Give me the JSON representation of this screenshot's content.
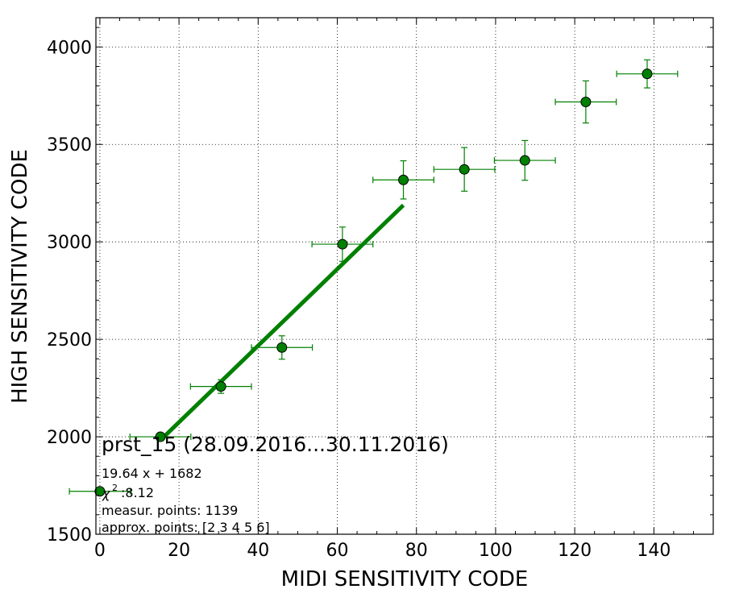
{
  "chart_data": {
    "type": "scatter",
    "xlabel": "MIDI SENSITIVITY CODE",
    "ylabel": "HIGH SENSITIVITY CODE",
    "xlim": [
      -1,
      155
    ],
    "ylim": [
      1500,
      4150
    ],
    "xticks": [
      0,
      20,
      40,
      60,
      80,
      100,
      120,
      140
    ],
    "yticks": [
      1500,
      2000,
      2500,
      3000,
      3500,
      4000
    ],
    "grid": true,
    "colors": {
      "points": "#008000",
      "fit": "#008000",
      "errorbars": "#008000"
    },
    "points": [
      {
        "x": 0,
        "y": 1720,
        "xerr": 7.7,
        "yerr": 0
      },
      {
        "x": 15.3,
        "y": 2000,
        "xerr": 7.7,
        "yerr": 0
      },
      {
        "x": 30.6,
        "y": 2258,
        "xerr": 7.7,
        "yerr": 35
      },
      {
        "x": 46.0,
        "y": 2458,
        "xerr": 7.7,
        "yerr": 60
      },
      {
        "x": 61.3,
        "y": 2988,
        "xerr": 7.7,
        "yerr": 88
      },
      {
        "x": 76.7,
        "y": 3318,
        "xerr": 7.7,
        "yerr": 98
      },
      {
        "x": 92.1,
        "y": 3372,
        "xerr": 7.7,
        "yerr": 112
      },
      {
        "x": 107.4,
        "y": 3418,
        "xerr": 7.7,
        "yerr": 102
      },
      {
        "x": 122.8,
        "y": 3718,
        "xerr": 7.7,
        "yerr": 108
      },
      {
        "x": 138.3,
        "y": 3862,
        "xerr": 7.7,
        "yerr": 72
      }
    ],
    "fit": {
      "slope": 19.64,
      "intercept": 1682,
      "x_range": [
        15.3,
        76.7
      ]
    },
    "annotations": {
      "title": "prst_15 (28.09.2016...30.11.2016)",
      "equation": "19.64 x + 1682",
      "chi2_symbol": "χ",
      "chi2_exp": "2",
      "chi2_value": ":8.12",
      "measur_points": "measur. points: 1139",
      "approx_points": "approx. points: [2 3 4 5 6]"
    }
  }
}
